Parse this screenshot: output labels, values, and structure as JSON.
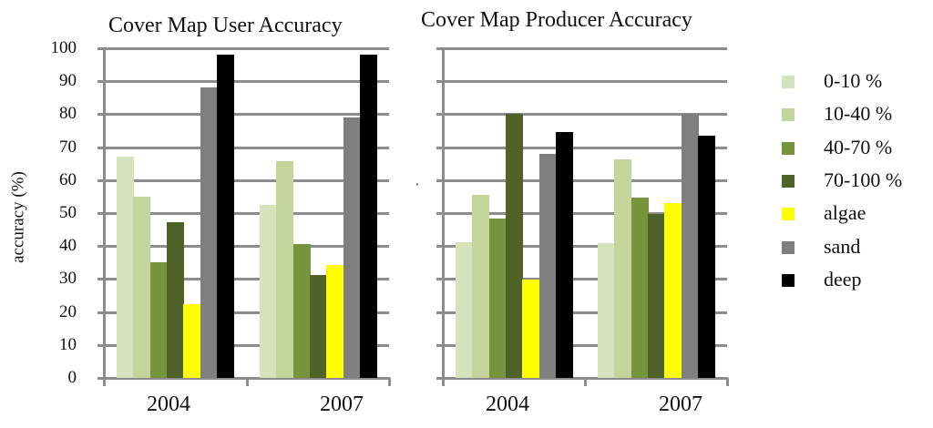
{
  "chart_data": [
    {
      "type": "bar",
      "title": "Cover Map User Accuracy",
      "xlabel": "",
      "ylabel": "accuracy (%)",
      "ylim": [
        0,
        100
      ],
      "yticks": [
        0,
        10,
        20,
        30,
        40,
        50,
        60,
        70,
        80,
        90,
        100
      ],
      "grid": true,
      "categories": [
        "2004",
        "2007"
      ],
      "series": [
        {
          "name": "0-10 %",
          "color": "#d6e2bb",
          "values": [
            67,
            52.5
          ]
        },
        {
          "name": "10-40 %",
          "color": "#c3d59a",
          "values": [
            55,
            65.7
          ]
        },
        {
          "name": "40-70 %",
          "color": "#77933c",
          "values": [
            35,
            40.6
          ]
        },
        {
          "name": "70-100 %",
          "color": "#4f6228",
          "values": [
            47.3,
            31.2
          ]
        },
        {
          "name": "algae",
          "color": "#ffff00",
          "values": [
            22.4,
            34.3
          ]
        },
        {
          "name": "sand",
          "color": "#7f7f7f",
          "values": [
            88,
            79
          ]
        },
        {
          "name": "deep",
          "color": "#000000",
          "values": [
            98,
            98
          ]
        }
      ]
    },
    {
      "type": "bar",
      "title": "Cover Map Producer Accuracy",
      "xlabel": "",
      "ylabel": "",
      "ylim": [
        0,
        100
      ],
      "grid": true,
      "categories": [
        "2004",
        "2007"
      ],
      "series": [
        {
          "name": "0-10 %",
          "color": "#d6e2bb",
          "values": [
            41.2,
            40.9
          ]
        },
        {
          "name": "10-40 %",
          "color": "#c3d59a",
          "values": [
            55.5,
            66.3
          ]
        },
        {
          "name": "40-70 %",
          "color": "#77933c",
          "values": [
            48.3,
            54.7
          ]
        },
        {
          "name": "70-100 %",
          "color": "#4f6228",
          "values": [
            80,
            49.7
          ]
        },
        {
          "name": "algae",
          "color": "#ffff00",
          "values": [
            29.8,
            53
          ]
        },
        {
          "name": "sand",
          "color": "#7f7f7f",
          "values": [
            68,
            80
          ]
        },
        {
          "name": "deep",
          "color": "#000000",
          "values": [
            74.6,
            73.5
          ]
        }
      ]
    }
  ],
  "legend": {
    "position": "right",
    "items": [
      {
        "label": "0-10 %",
        "color": "#d6e2bb"
      },
      {
        "label": "10-40 %",
        "color": "#c3d59a"
      },
      {
        "label": "40-70 %",
        "color": "#77933c"
      },
      {
        "label": "70-100 %",
        "color": "#4f6228"
      },
      {
        "label": "algae",
        "color": "#ffff00"
      },
      {
        "label": "sand",
        "color": "#7f7f7f"
      },
      {
        "label": "deep",
        "color": "#000000"
      }
    ]
  }
}
